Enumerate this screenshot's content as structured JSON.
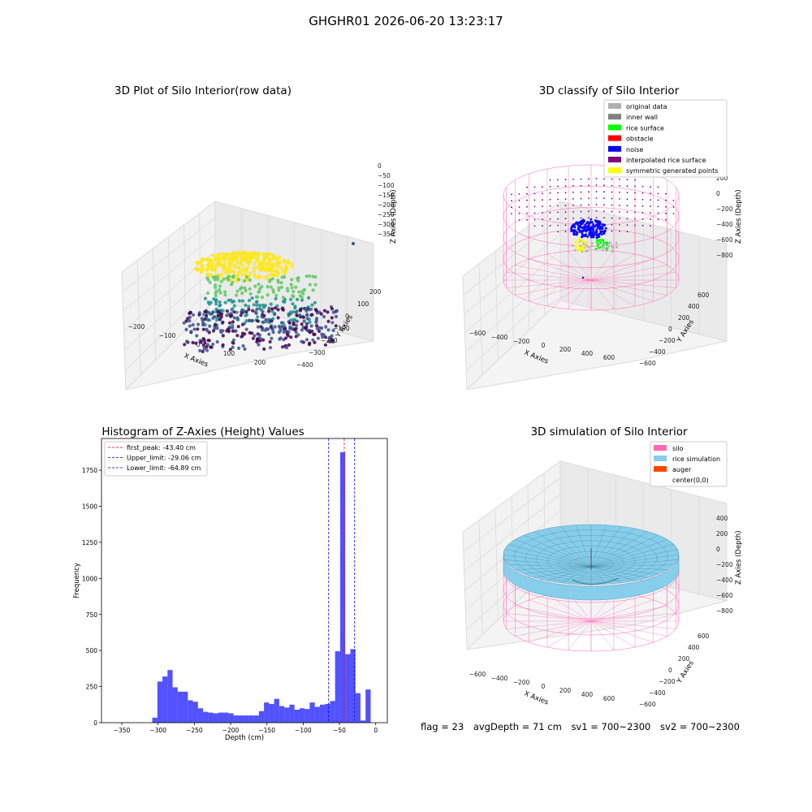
{
  "figure_title": "GHGHR01 2026-06-20 13:23:17",
  "status": {
    "flag": "flag = 23",
    "avg_depth": "avgDepth = 71 cm",
    "sv1": "sv1 = 700~2300",
    "sv2": "sv2 = 700~2300"
  },
  "chart_data": [
    {
      "type": "scatter",
      "title": "3D Plot of Silo Interior(row data)",
      "xlabel": "X Axies",
      "ylabel": "Y Axies",
      "zlabel": "Z Axies (Depth)",
      "x_ticks": [
        "−200",
        "−100",
        "0",
        "100",
        "200"
      ],
      "y_ticks": [
        "−400",
        "−300",
        "−200",
        "−100",
        "0",
        "100",
        "200"
      ],
      "z_ticks": [
        "0",
        "−50",
        "−100",
        "−150",
        "−200",
        "−250",
        "−300",
        "−350"
      ],
      "xlim": [
        -250,
        250
      ],
      "ylim": [
        -450,
        250
      ],
      "zlim": [
        -370,
        10
      ],
      "colormap": "viridis",
      "colors": [
        "#440154",
        "#3b528b",
        "#21918c",
        "#5ec962",
        "#fde725"
      ]
    },
    {
      "type": "scatter",
      "title": "3D classify of Silo Interior",
      "xlabel": "X Axies",
      "ylabel": "Y Axies",
      "zlabel": "Z Axies (Depth)",
      "x_ticks": [
        "−600",
        "−400",
        "−200",
        "0",
        "200",
        "400",
        "600"
      ],
      "y_ticks": [
        "−600",
        "−400",
        "−200",
        "0",
        "200",
        "400",
        "600"
      ],
      "z_ticks": [
        "200",
        "0",
        "−200",
        "−400",
        "−600",
        "−800"
      ],
      "legend_position": "top-right",
      "legend": [
        {
          "label": "original data",
          "color": "#b0b0b0"
        },
        {
          "label": "inner wall",
          "color": "#808080"
        },
        {
          "label": "rice surface",
          "color": "#00ff00"
        },
        {
          "label": "obstacle",
          "color": "#ff0000"
        },
        {
          "label": "noise",
          "color": "#0000ff"
        },
        {
          "label": "interpolated rice surface",
          "color": "#800080"
        },
        {
          "label": "symmetric generated points",
          "color": "#ffff00"
        }
      ]
    },
    {
      "type": "bar",
      "title": "Histogram of Z-Axies (Height) Values",
      "xlabel": "Depth (cm)",
      "ylabel": "Frequency",
      "xlim": [
        -378,
        16
      ],
      "ylim": [
        0,
        1970
      ],
      "x_ticks": [
        -350,
        -300,
        -250,
        -200,
        -150,
        -100,
        -50,
        0
      ],
      "y_ticks": [
        0,
        250,
        500,
        750,
        1000,
        1250,
        1500,
        1750
      ],
      "bar_color": "#0000ff",
      "bar_alpha": 0.68,
      "bin_edges": [
        -308,
        -301,
        -294,
        -287,
        -280,
        -273,
        -266,
        -259,
        -252,
        -245,
        -238,
        -231,
        -224,
        -217,
        -210,
        -203,
        -196,
        -189,
        -182,
        -175,
        -168,
        -161,
        -154,
        -147,
        -140,
        -133,
        -126,
        -119,
        -112,
        -105,
        -98,
        -91,
        -84,
        -77,
        -70,
        -63,
        -56,
        -49,
        -42,
        -35,
        -28,
        -21,
        -14,
        -7,
        0
      ],
      "values": [
        35,
        285,
        320,
        365,
        245,
        215,
        215,
        155,
        145,
        100,
        75,
        70,
        65,
        70,
        70,
        65,
        50,
        50,
        50,
        50,
        50,
        80,
        140,
        130,
        165,
        115,
        105,
        125,
        90,
        100,
        95,
        140,
        110,
        125,
        130,
        150,
        495,
        1875,
        475,
        510,
        205,
        15,
        230,
        0
      ],
      "legend_position": "top-left",
      "vlines": [
        {
          "label": "first_peak: -43.40 cm",
          "x": -43.4,
          "color": "#ff0000"
        },
        {
          "label": "Upper_limit: -29.06 cm",
          "x": -29.06,
          "color": "#0000ff"
        },
        {
          "label": "Lower_limit: -64.89 cm",
          "x": -64.89,
          "color": "#0000ff"
        }
      ]
    },
    {
      "type": "area",
      "title": "3D simulation of Silo Interior",
      "xlabel": "X Axies",
      "ylabel": "Y Axies",
      "zlabel": "Z Axies (Depth)",
      "x_ticks": [
        "−600",
        "−400",
        "−200",
        "0",
        "200",
        "400",
        "600"
      ],
      "y_ticks": [
        "−600",
        "−400",
        "−200",
        "0",
        "200",
        "400",
        "600"
      ],
      "z_ticks": [
        "400",
        "200",
        "0",
        "−200",
        "−400",
        "−600",
        "−800"
      ],
      "legend_position": "top-right",
      "legend": [
        {
          "label": "silo",
          "color": "#ff69b4"
        },
        {
          "label": "rice simulation",
          "color": "#87ceeb"
        },
        {
          "label": "auger",
          "color": "#ff4500"
        },
        {
          "label": "center(0,0)",
          "color": "#ffffff"
        }
      ]
    }
  ]
}
